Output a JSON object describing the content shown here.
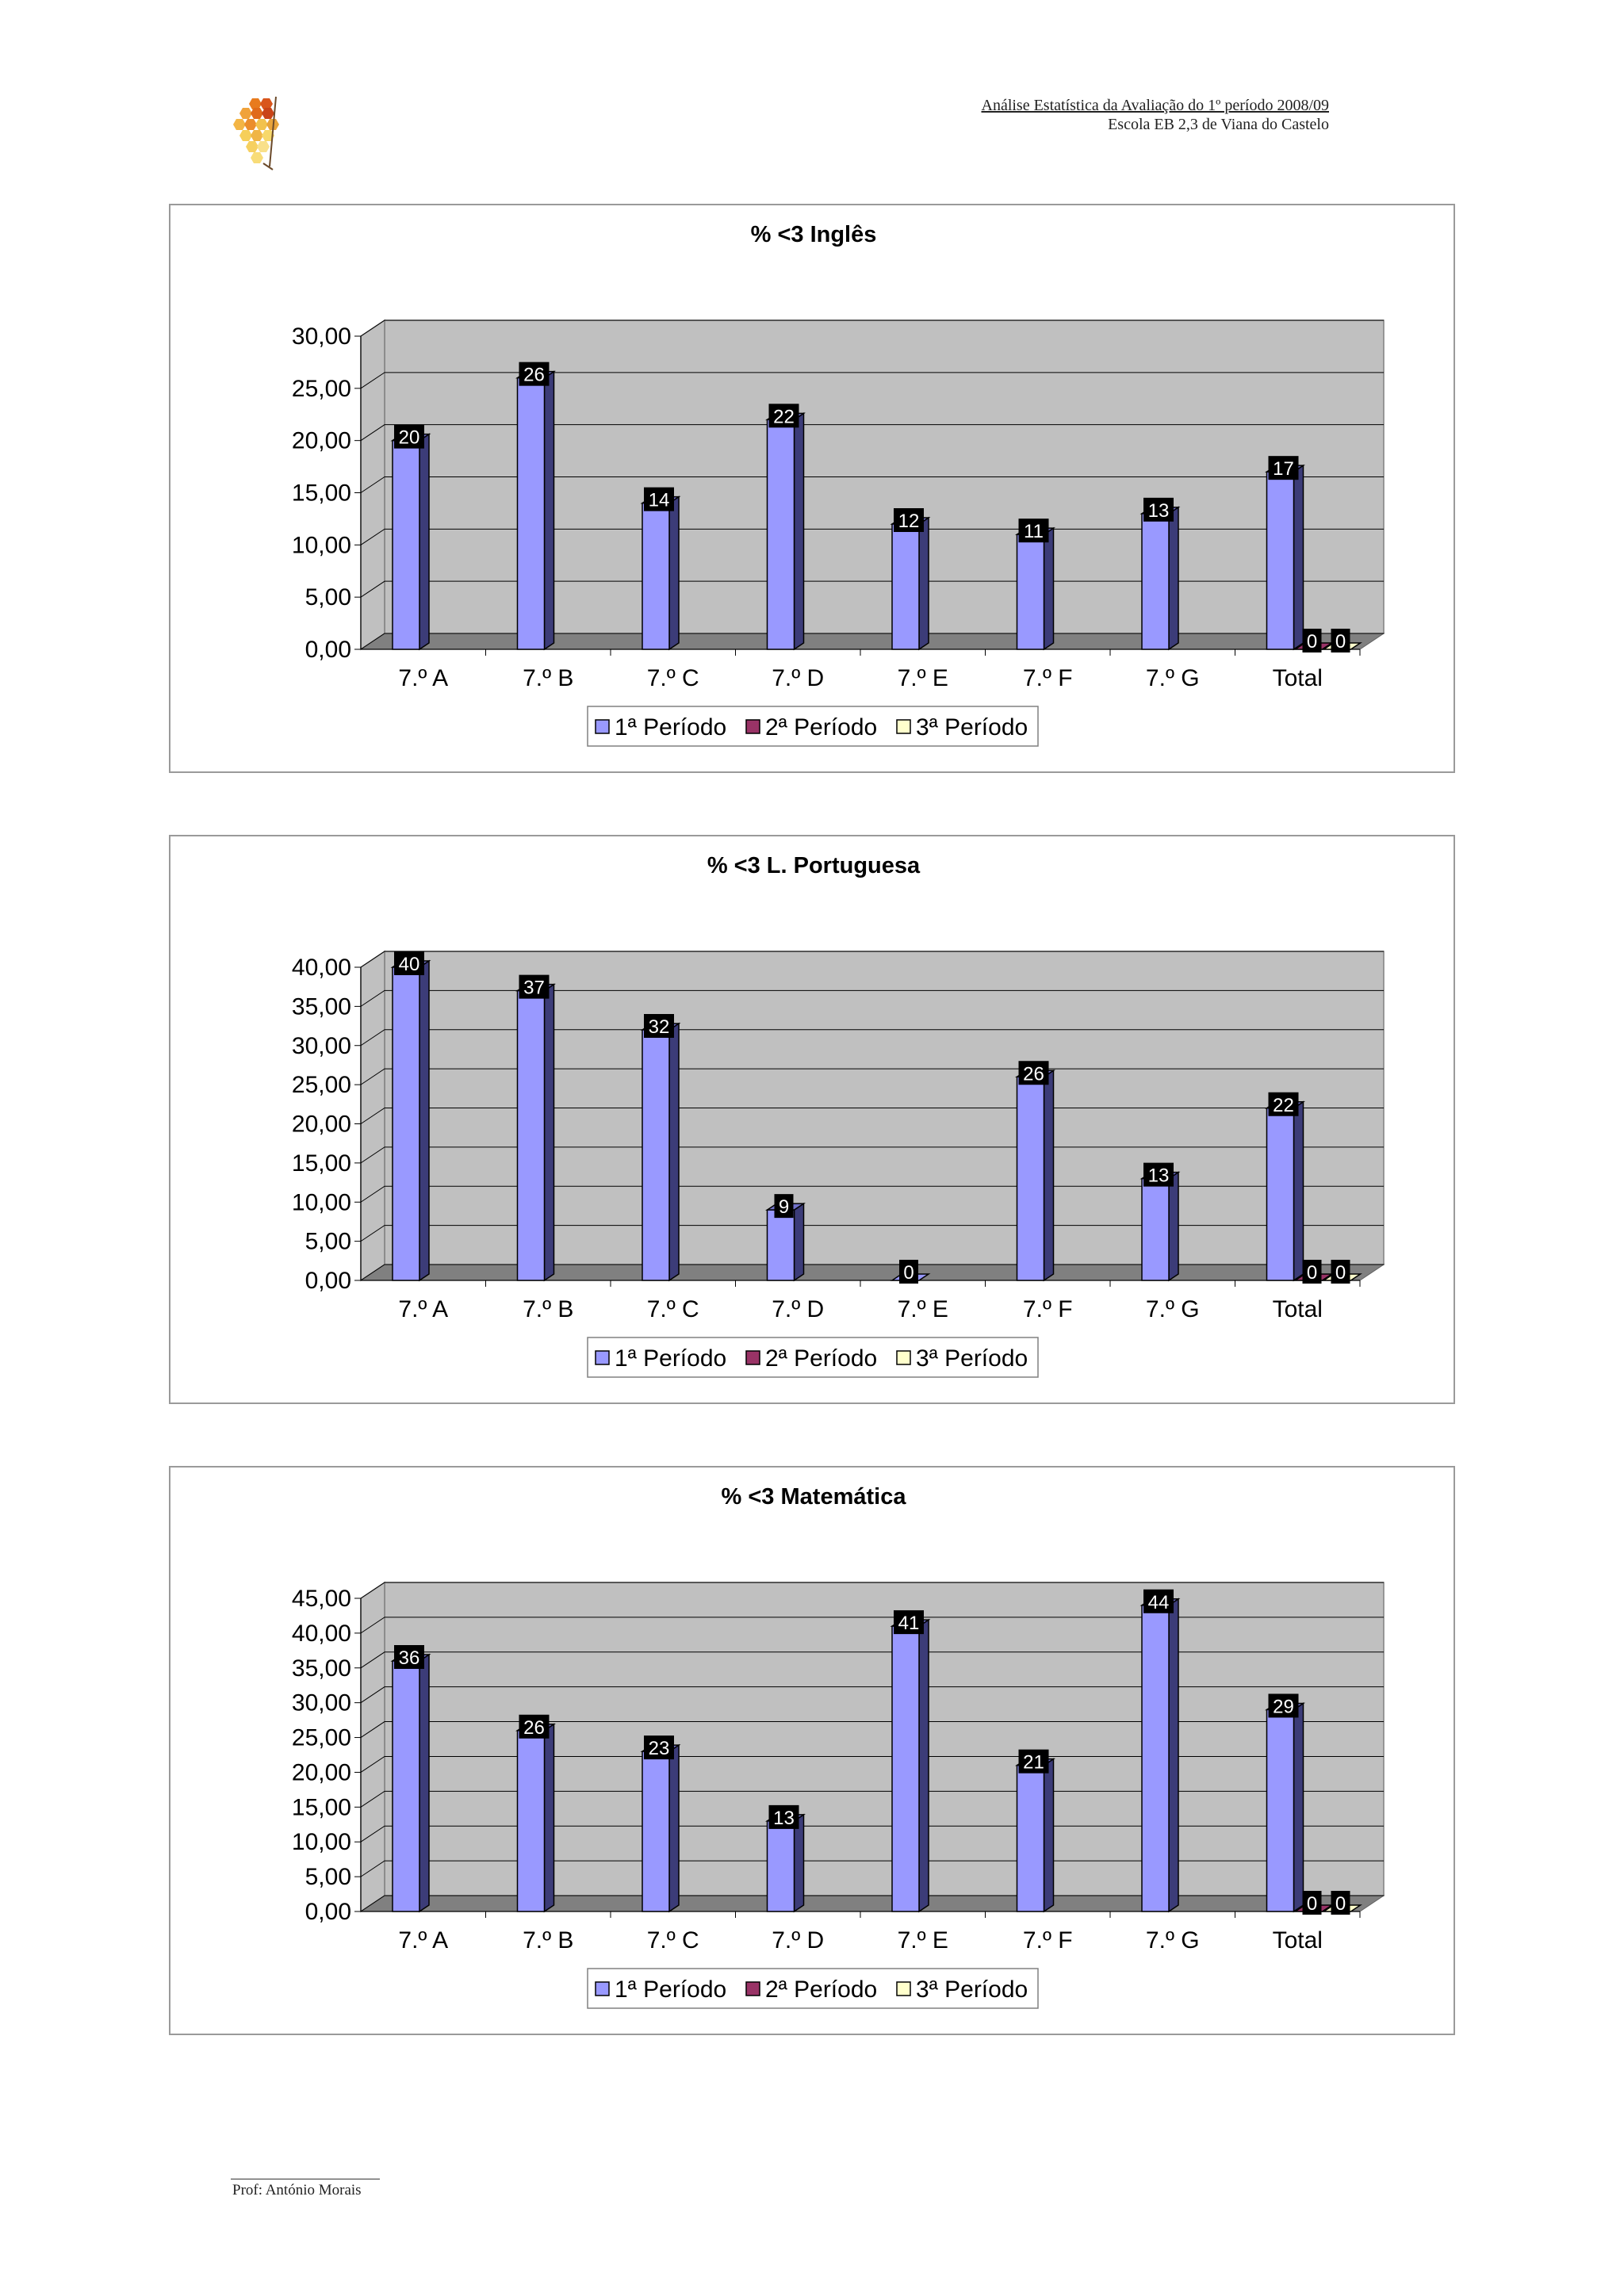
{
  "header": {
    "title": "Análise Estatística da Avaliação do 1º período 2008/09",
    "school": "Escola EB 2,3 de Viana do Castelo"
  },
  "footer": {
    "author": "Prof: António Morais"
  },
  "colors": {
    "series1": "#9999ff",
    "series2": "#993366",
    "series3": "#ffffcc",
    "plot_background": "#c0c0c0",
    "floor": "#808080"
  },
  "chart_data": [
    {
      "type": "bar",
      "title": "%  <3 Inglês",
      "categories": [
        "7.º A",
        "7.º B",
        "7.º C",
        "7.º D",
        "7.º E",
        "7.º F",
        "7.º G",
        "Total"
      ],
      "series": [
        {
          "name": "1ª Período",
          "values": [
            20,
            26,
            14,
            22,
            12,
            11,
            13,
            17
          ]
        },
        {
          "name": "2ª Período",
          "values": [
            null,
            null,
            null,
            null,
            null,
            null,
            null,
            0
          ]
        },
        {
          "name": "3ª Período",
          "values": [
            null,
            null,
            null,
            null,
            null,
            null,
            null,
            0
          ]
        }
      ],
      "ylim": [
        0,
        30
      ],
      "yticks": [
        "0,00",
        "5,00",
        "10,00",
        "15,00",
        "20,00",
        "25,00",
        "30,00"
      ],
      "ystep": 5,
      "legend": "bottom"
    },
    {
      "type": "bar",
      "title": "%  <3 L. Portuguesa",
      "categories": [
        "7.º A",
        "7.º B",
        "7.º C",
        "7.º D",
        "7.º E",
        "7.º F",
        "7.º G",
        "Total"
      ],
      "series": [
        {
          "name": "1ª Período",
          "values": [
            40,
            37,
            32,
            9,
            0,
            26,
            13,
            22
          ]
        },
        {
          "name": "2ª Período",
          "values": [
            null,
            null,
            null,
            null,
            null,
            null,
            null,
            0
          ]
        },
        {
          "name": "3ª Período",
          "values": [
            null,
            null,
            null,
            null,
            null,
            null,
            null,
            0
          ]
        }
      ],
      "ylim": [
        0,
        40
      ],
      "yticks": [
        "0,00",
        "5,00",
        "10,00",
        "15,00",
        "20,00",
        "25,00",
        "30,00",
        "35,00",
        "40,00"
      ],
      "ystep": 5,
      "legend": "bottom"
    },
    {
      "type": "bar",
      "title": "%  <3 Matemática",
      "categories": [
        "7.º A",
        "7.º B",
        "7.º C",
        "7.º D",
        "7.º E",
        "7.º F",
        "7.º G",
        "Total"
      ],
      "series": [
        {
          "name": "1ª Período",
          "values": [
            36,
            26,
            23,
            13,
            41,
            21,
            44,
            29
          ]
        },
        {
          "name": "2ª Período",
          "values": [
            null,
            null,
            null,
            null,
            null,
            null,
            null,
            0
          ]
        },
        {
          "name": "3ª Período",
          "values": [
            null,
            null,
            null,
            null,
            null,
            null,
            null,
            0
          ]
        }
      ],
      "ylim": [
        0,
        45
      ],
      "yticks": [
        "0,00",
        "5,00",
        "10,00",
        "15,00",
        "20,00",
        "25,00",
        "30,00",
        "35,00",
        "40,00",
        "45,00"
      ],
      "ystep": 5,
      "legend": "bottom"
    }
  ]
}
